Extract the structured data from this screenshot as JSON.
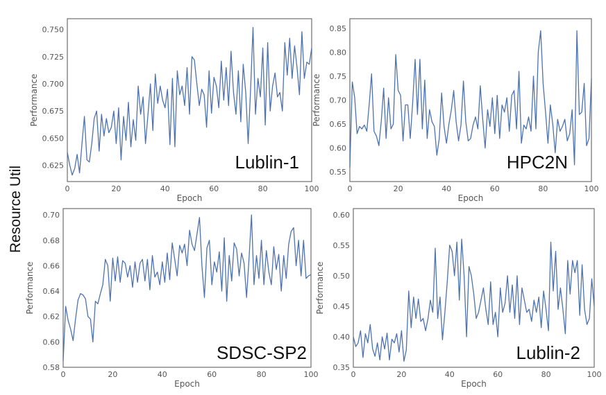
{
  "page_ylabel": "Resource Util",
  "chart_data": [
    {
      "type": "line",
      "panel_label": "Lublin-1",
      "xlabel": "Epoch",
      "ylabel": "Performance",
      "xlim": [
        0,
        100
      ],
      "ylim": [
        0.61,
        0.76
      ],
      "xticks": [
        0,
        20,
        40,
        60,
        80,
        100
      ],
      "yticks": [
        0.625,
        0.65,
        0.675,
        0.7,
        0.725,
        0.75
      ],
      "ytick_labels": [
        "0.625",
        "0.650",
        "0.675",
        "0.700",
        "0.725",
        "0.750"
      ],
      "grid": false,
      "series": [
        {
          "values": [
            0.637,
            0.625,
            0.616,
            0.622,
            0.635,
            0.618,
            0.645,
            0.67,
            0.63,
            0.628,
            0.645,
            0.668,
            0.675,
            0.638,
            0.672,
            0.652,
            0.668,
            0.655,
            0.66,
            0.675,
            0.645,
            0.678,
            0.63,
            0.67,
            0.648,
            0.683,
            0.642,
            0.667,
            0.648,
            0.698,
            0.672,
            0.688,
            0.645,
            0.672,
            0.7,
            0.657,
            0.709,
            0.682,
            0.698,
            0.685,
            0.678,
            0.695,
            0.644,
            0.705,
            0.642,
            0.712,
            0.69,
            0.698,
            0.68,
            0.715,
            0.672,
            0.725,
            0.722,
            0.7,
            0.68,
            0.695,
            0.69,
            0.66,
            0.712,
            0.673,
            0.706,
            0.698,
            0.678,
            0.721,
            0.685,
            0.715,
            0.68,
            0.73,
            0.692,
            0.672,
            0.712,
            0.665,
            0.718,
            0.692,
            0.645,
            0.695,
            0.752,
            0.672,
            0.705,
            0.688,
            0.733,
            0.662,
            0.738,
            0.675,
            0.698,
            0.71,
            0.688,
            0.692,
            0.675,
            0.738,
            0.708,
            0.742,
            0.705,
            0.735,
            0.715,
            0.69,
            0.748,
            0.705,
            0.72,
            0.718,
            0.733
          ]
        }
      ]
    },
    {
      "type": "line",
      "panel_label": "HPC2N",
      "xlabel": "Epoch",
      "ylabel": "Performance",
      "xlim": [
        0,
        100
      ],
      "ylim": [
        0.53,
        0.87
      ],
      "xticks": [
        0,
        20,
        40,
        60,
        80,
        100
      ],
      "yticks": [
        0.55,
        0.6,
        0.65,
        0.7,
        0.75,
        0.8,
        0.85
      ],
      "ytick_labels": [
        "0.55",
        "0.60",
        "0.65",
        "0.70",
        "0.75",
        "0.80",
        "0.85"
      ],
      "grid": false,
      "series": [
        {
          "values": [
            0.56,
            0.738,
            0.705,
            0.63,
            0.645,
            0.64,
            0.648,
            0.635,
            0.69,
            0.755,
            0.635,
            0.625,
            0.605,
            0.655,
            0.725,
            0.62,
            0.705,
            0.64,
            0.65,
            0.795,
            0.72,
            0.71,
            0.615,
            0.69,
            0.69,
            0.62,
            0.695,
            0.785,
            0.67,
            0.785,
            0.64,
            0.742,
            0.62,
            0.68,
            0.655,
            0.645,
            0.585,
            0.62,
            0.715,
            0.645,
            0.61,
            0.65,
            0.68,
            0.72,
            0.655,
            0.615,
            0.648,
            0.74,
            0.655,
            0.615,
            0.62,
            0.648,
            0.665,
            0.64,
            0.73,
            0.66,
            0.6,
            0.68,
            0.645,
            0.705,
            0.63,
            0.71,
            0.62,
            0.69,
            0.675,
            0.705,
            0.635,
            0.71,
            0.72,
            0.64,
            0.76,
            0.61,
            0.648,
            0.64,
            0.665,
            0.635,
            0.75,
            0.64,
            0.8,
            0.845,
            0.735,
            0.675,
            0.61,
            0.69,
            0.65,
            0.59,
            0.66,
            0.635,
            0.645,
            0.66,
            0.615,
            0.63,
            0.68,
            0.565,
            0.845,
            0.67,
            0.675,
            0.735,
            0.605,
            0.62,
            0.745
          ]
        }
      ]
    },
    {
      "type": "line",
      "panel_label": "SDSC-SP2",
      "xlabel": "Epoch",
      "ylabel": "Performance",
      "xlim": [
        0,
        100
      ],
      "ylim": [
        0.58,
        0.705
      ],
      "xticks": [
        0,
        20,
        40,
        60,
        80,
        100
      ],
      "yticks": [
        0.58,
        0.6,
        0.62,
        0.64,
        0.66,
        0.68,
        0.7
      ],
      "ytick_labels": [
        "0.58",
        "0.60",
        "0.62",
        "0.64",
        "0.66",
        "0.68",
        "0.70"
      ],
      "grid": false,
      "series": [
        {
          "values": [
            0.585,
            0.628,
            0.617,
            0.61,
            0.601,
            0.618,
            0.633,
            0.638,
            0.637,
            0.634,
            0.62,
            0.618,
            0.6,
            0.632,
            0.63,
            0.638,
            0.645,
            0.665,
            0.66,
            0.632,
            0.666,
            0.648,
            0.667,
            0.647,
            0.664,
            0.662,
            0.651,
            0.66,
            0.643,
            0.663,
            0.647,
            0.662,
            0.665,
            0.648,
            0.665,
            0.641,
            0.668,
            0.651,
            0.655,
            0.645,
            0.663,
            0.647,
            0.67,
            0.649,
            0.678,
            0.665,
            0.652,
            0.676,
            0.67,
            0.677,
            0.66,
            0.688,
            0.677,
            0.672,
            0.685,
            0.698,
            0.66,
            0.635,
            0.674,
            0.68,
            0.645,
            0.663,
            0.655,
            0.671,
            0.64,
            0.682,
            0.632,
            0.668,
            0.648,
            0.678,
            0.673,
            0.652,
            0.67,
            0.662,
            0.635,
            0.666,
            0.7,
            0.645,
            0.668,
            0.65,
            0.68,
            0.645,
            0.672,
            0.655,
            0.645,
            0.675,
            0.657,
            0.669,
            0.64,
            0.668,
            0.65,
            0.677,
            0.687,
            0.69,
            0.66,
            0.68,
            0.652,
            0.68,
            0.65,
            0.652,
            0.653
          ]
        }
      ]
    },
    {
      "type": "line",
      "panel_label": "Lublin-2",
      "xlabel": "Epoch",
      "ylabel": "Performance",
      "xlim": [
        0,
        100
      ],
      "ylim": [
        0.35,
        0.61
      ],
      "xticks": [
        0,
        20,
        40,
        60,
        80,
        100
      ],
      "yticks": [
        0.35,
        0.4,
        0.45,
        0.5,
        0.55,
        0.6
      ],
      "ytick_labels": [
        "0.35",
        "0.40",
        "0.45",
        "0.50",
        "0.55",
        "0.60"
      ],
      "grid": false,
      "series": [
        {
          "values": [
            0.4,
            0.384,
            0.39,
            0.41,
            0.366,
            0.405,
            0.39,
            0.42,
            0.38,
            0.368,
            0.39,
            0.362,
            0.4,
            0.38,
            0.406,
            0.362,
            0.396,
            0.39,
            0.405,
            0.375,
            0.41,
            0.36,
            0.378,
            0.475,
            0.415,
            0.465,
            0.43,
            0.462,
            0.425,
            0.43,
            0.41,
            0.43,
            0.46,
            0.44,
            0.545,
            0.43,
            0.465,
            0.395,
            0.44,
            0.49,
            0.55,
            0.54,
            0.5,
            0.555,
            0.46,
            0.56,
            0.5,
            0.4,
            0.515,
            0.5,
            0.47,
            0.43,
            0.44,
            0.46,
            0.48,
            0.445,
            0.42,
            0.49,
            0.42,
            0.44,
            0.4,
            0.48,
            0.44,
            0.455,
            0.5,
            0.44,
            0.485,
            0.43,
            0.5,
            0.42,
            0.48,
            0.46,
            0.44,
            0.445,
            0.425,
            0.46,
            0.44,
            0.465,
            0.415,
            0.475,
            0.445,
            0.41,
            0.555,
            0.475,
            0.54,
            0.445,
            0.48,
            0.445,
            0.405,
            0.525,
            0.47,
            0.525,
            0.505,
            0.525,
            0.435,
            0.518,
            0.445,
            0.42,
            0.43,
            0.495,
            0.45
          ]
        }
      ]
    }
  ]
}
